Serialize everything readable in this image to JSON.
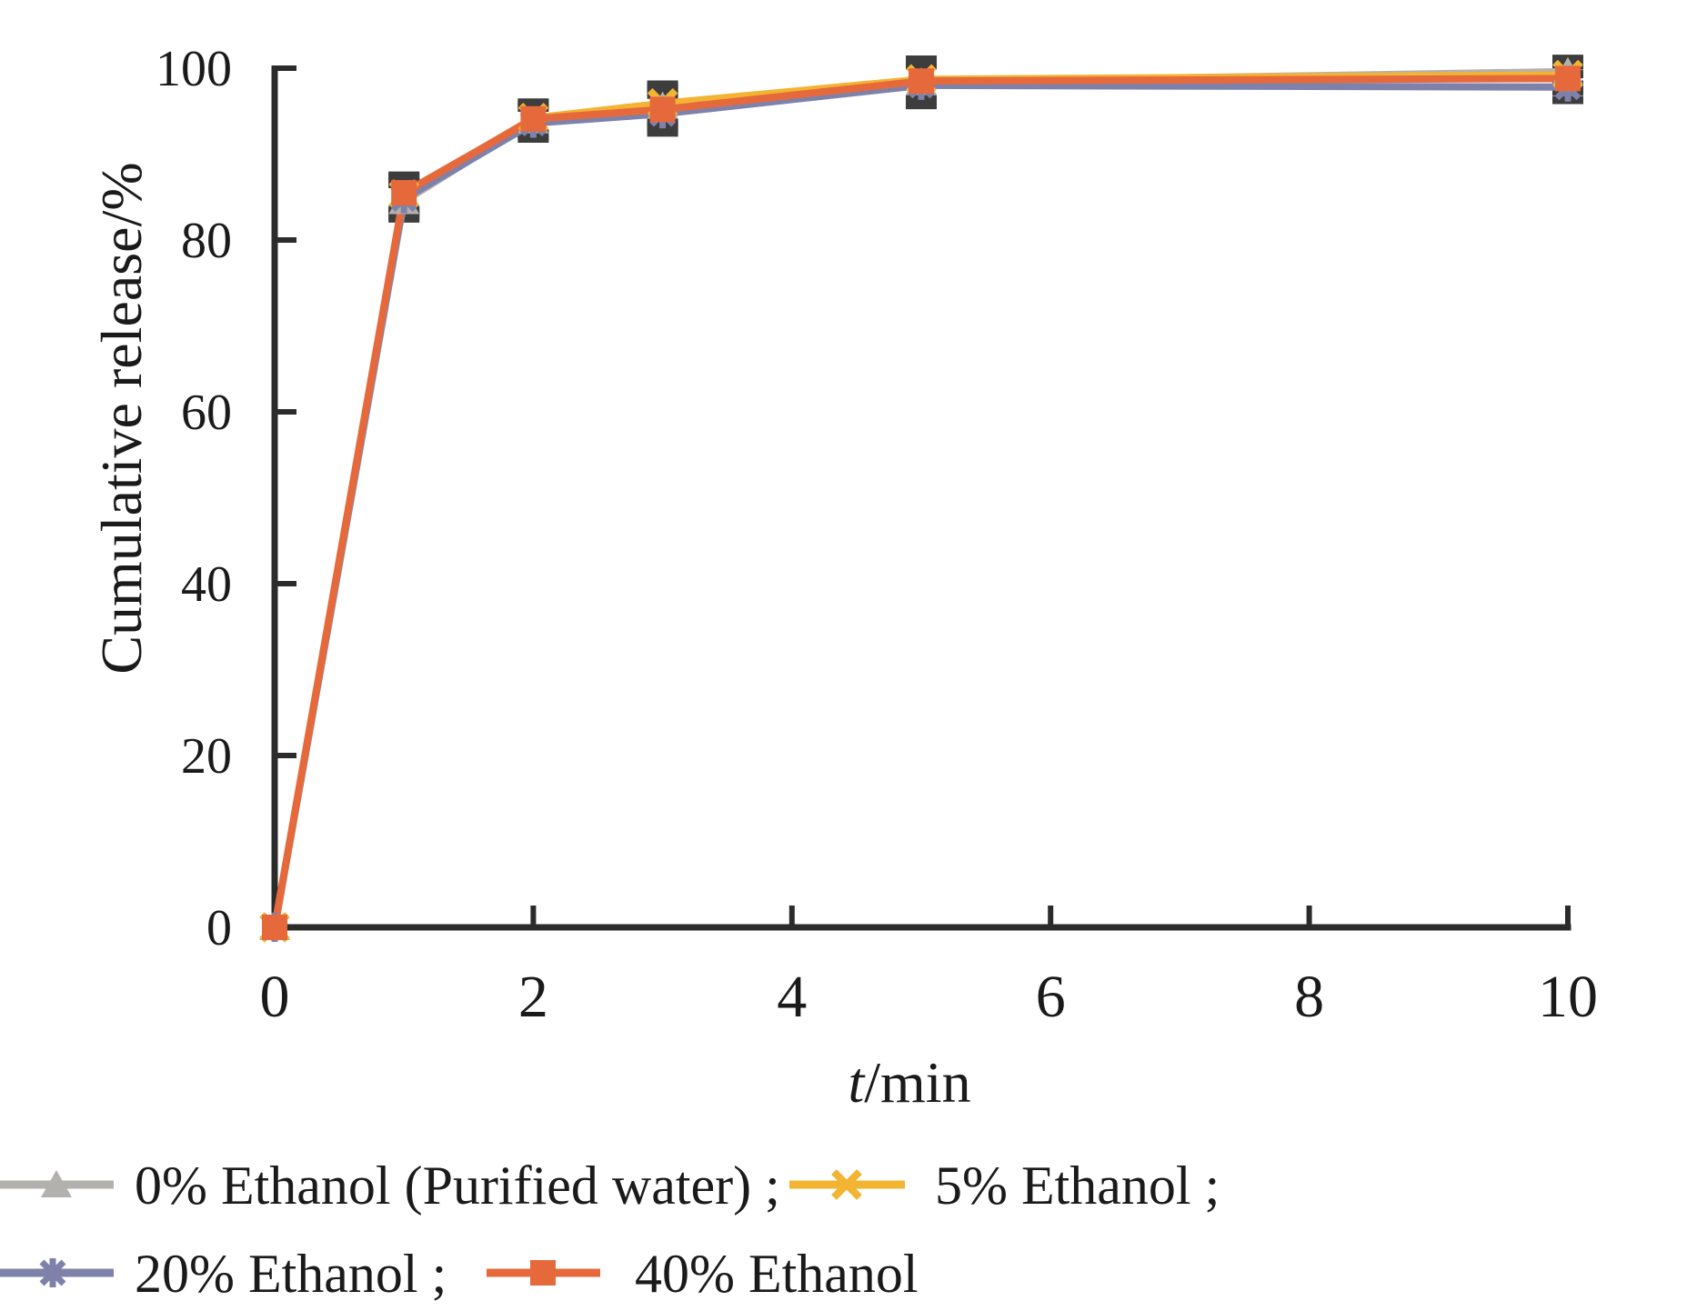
{
  "figure": {
    "background": "#ffffff",
    "text_color": "#1a1a1a"
  },
  "chart_data": {
    "type": "line",
    "xlabel": "t/min",
    "xlabel_italic": "t",
    "xlabel_rest": "/min",
    "ylabel": "Cumulative release/%",
    "xlim": [
      0,
      10
    ],
    "ylim": [
      0,
      100
    ],
    "xticks": [
      0,
      2,
      4,
      6,
      8,
      10
    ],
    "yticks": [
      0,
      20,
      40,
      60,
      80,
      100
    ],
    "grid": false,
    "legend_position": "bottom",
    "axis_color": "#2b2b2b",
    "error_bar_color": "#3d3d3d",
    "x": [
      0,
      1,
      2,
      3,
      5,
      10
    ],
    "series": [
      {
        "name": "0% Ethanol (Purified water)",
        "marker": "triangle",
        "color": "#b3b1ad",
        "values": [
          0,
          84.5,
          93.9,
          95.6,
          98.4,
          99.6
        ],
        "errors": [
          0,
          2.0,
          1.8,
          2.2,
          2.3,
          1.5
        ]
      },
      {
        "name": "5% Ethanol",
        "marker": "x",
        "color": "#f2b432",
        "values": [
          0,
          85.3,
          94.2,
          95.9,
          98.7,
          99.2
        ],
        "errors": [
          0,
          2.0,
          1.8,
          2.2,
          2.3,
          1.5
        ]
      },
      {
        "name": "20% Ethanol",
        "marker": "asterisk",
        "color": "#7e82aa",
        "values": [
          0,
          84.8,
          93.6,
          94.7,
          98.0,
          97.8
        ],
        "errors": [
          0,
          2.0,
          1.8,
          2.2,
          2.3,
          1.5
        ]
      },
      {
        "name": "40% Ethanol",
        "marker": "square",
        "color": "#e6693c",
        "values": [
          0,
          85.5,
          94.1,
          95.2,
          98.5,
          98.8
        ],
        "errors": [
          0,
          2.0,
          1.8,
          2.2,
          2.3,
          1.5
        ]
      }
    ]
  },
  "legend": {
    "items": [
      {
        "label": "0% Ethanol (Purified water) ;",
        "marker": "triangle",
        "color": "#b3b1ad"
      },
      {
        "label": "5% Ethanol ;",
        "marker": "x",
        "color": "#f2b432"
      },
      {
        "label": "20% Ethanol ;",
        "marker": "asterisk",
        "color": "#7e82aa"
      },
      {
        "label": "40% Ethanol",
        "marker": "square",
        "color": "#e6693c"
      }
    ]
  }
}
